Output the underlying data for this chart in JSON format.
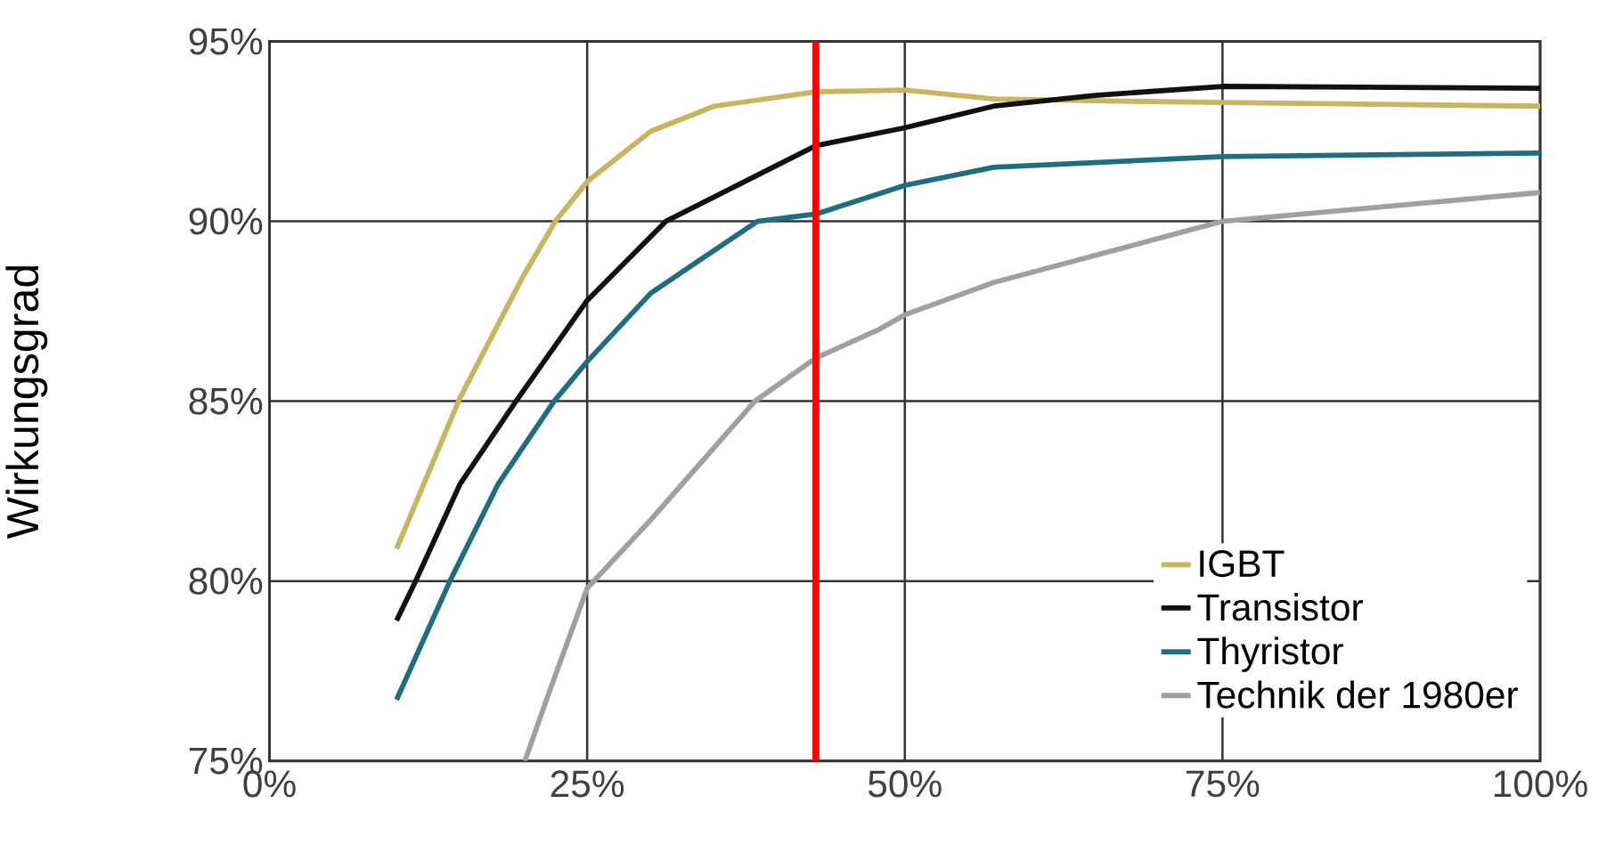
{
  "chart_data": {
    "type": "line",
    "ylabel": "Wirkungsgrad",
    "xlim": [
      0,
      100
    ],
    "ylim": [
      75,
      95
    ],
    "xticks": [
      {
        "value": 0,
        "label": "0%"
      },
      {
        "value": 25,
        "label": "25%"
      },
      {
        "value": 50,
        "label": "50%"
      },
      {
        "value": 75,
        "label": "75%"
      },
      {
        "value": 100,
        "label": "100%"
      }
    ],
    "yticks": [
      {
        "value": 75,
        "label": "75%"
      },
      {
        "value": 80,
        "label": "80%"
      },
      {
        "value": 85,
        "label": "85%"
      },
      {
        "value": 90,
        "label": "90%"
      },
      {
        "value": 95,
        "label": "95%"
      }
    ],
    "grid": true,
    "legend": "bottom right",
    "series": [
      {
        "name": "IGBT",
        "color": "#c8b560",
        "x": [
          10,
          15,
          20,
          22.5,
          25,
          30,
          35,
          43,
          50,
          57,
          65,
          75,
          100
        ],
        "values": [
          80.9,
          85.1,
          88.5,
          90,
          91.1,
          92.5,
          93.2,
          93.6,
          93.65,
          93.4,
          93.35,
          93.3,
          93.2
        ]
      },
      {
        "name": "Transistor",
        "color": "#111111",
        "x": [
          10,
          11.5,
          15,
          19.4,
          25,
          31.2,
          43,
          50,
          57,
          65,
          75,
          100
        ],
        "values": [
          78.9,
          80,
          82.7,
          85,
          87.8,
          90,
          92.1,
          92.6,
          93.2,
          93.5,
          93.75,
          93.7
        ]
      },
      {
        "name": "Thyristor",
        "color": "#1f6e7f",
        "x": [
          10,
          14.2,
          18,
          22.4,
          25,
          30,
          38.4,
          43,
          50,
          57,
          75,
          100
        ],
        "values": [
          76.7,
          80,
          82.7,
          85,
          86.1,
          88,
          90,
          90.2,
          91,
          91.5,
          91.8,
          91.9
        ]
      },
      {
        "name": "Technik der 1980er",
        "color": "#a0a0a0",
        "x": [
          20.1,
          22,
          25,
          30,
          38.2,
          43,
          48,
          50,
          57,
          75,
          100
        ],
        "values": [
          75,
          76.9,
          79.8,
          81.7,
          85,
          86.2,
          87,
          87.4,
          88.3,
          90,
          90.8
        ]
      }
    ],
    "ref_lines": [
      {
        "axis": "x",
        "value": 43,
        "color": "#ff0000"
      }
    ]
  }
}
